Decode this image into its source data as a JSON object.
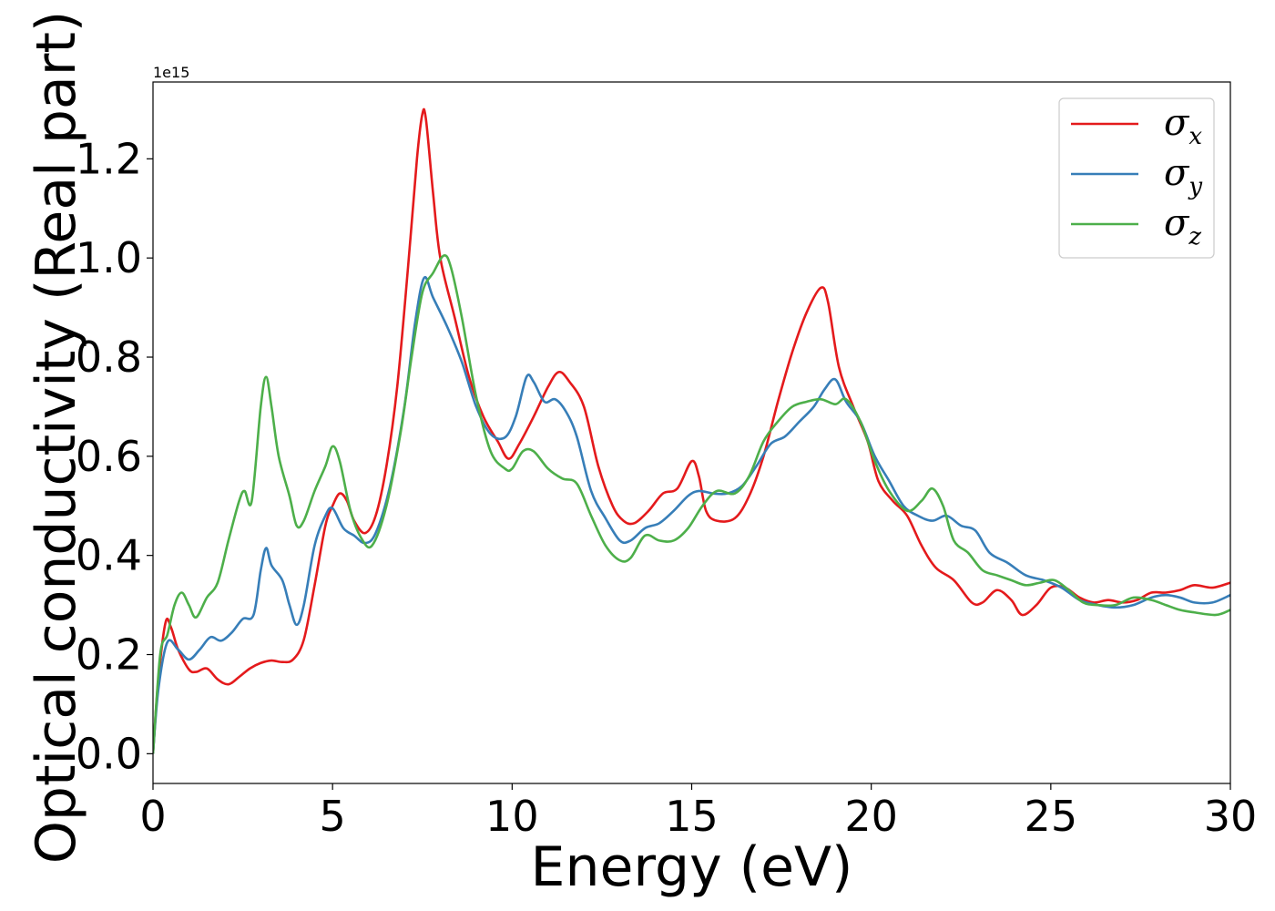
{
  "chart_data": {
    "type": "line",
    "xlabel": "Energy (eV)",
    "ylabel": "Optical conductivity (Real part)",
    "y_offset_label": "1e15",
    "xlim": [
      0,
      30
    ],
    "ylim": [
      -0.06,
      1.355
    ],
    "x_ticks": [
      0,
      5,
      10,
      15,
      20,
      25,
      30
    ],
    "x_tick_labels": [
      "0",
      "5",
      "10",
      "15",
      "20",
      "25",
      "30"
    ],
    "y_ticks": [
      0.0,
      0.2,
      0.4,
      0.6,
      0.8,
      1.0,
      1.2
    ],
    "y_tick_labels": [
      "0.0",
      "0.2",
      "0.4",
      "0.6",
      "0.8",
      "1.0",
      "1.2"
    ],
    "grid": false,
    "legend_position": "upper right",
    "series": [
      {
        "name": "σx",
        "symbol": "σ",
        "subscript": "x",
        "color": "#e41a1c",
        "points": [
          [
            0,
            0
          ],
          [
            0.15,
            0.15
          ],
          [
            0.35,
            0.265
          ],
          [
            0.5,
            0.255
          ],
          [
            0.7,
            0.21
          ],
          [
            1.0,
            0.17
          ],
          [
            1.2,
            0.165
          ],
          [
            1.5,
            0.172
          ],
          [
            1.8,
            0.15
          ],
          [
            2.1,
            0.14
          ],
          [
            2.4,
            0.155
          ],
          [
            2.7,
            0.172
          ],
          [
            3.0,
            0.183
          ],
          [
            3.3,
            0.188
          ],
          [
            3.6,
            0.185
          ],
          [
            3.9,
            0.19
          ],
          [
            4.2,
            0.23
          ],
          [
            4.5,
            0.34
          ],
          [
            4.8,
            0.46
          ],
          [
            5.0,
            0.5
          ],
          [
            5.2,
            0.525
          ],
          [
            5.4,
            0.51
          ],
          [
            5.6,
            0.47
          ],
          [
            5.9,
            0.445
          ],
          [
            6.2,
            0.48
          ],
          [
            6.5,
            0.58
          ],
          [
            6.8,
            0.74
          ],
          [
            7.1,
            0.98
          ],
          [
            7.35,
            1.2
          ],
          [
            7.5,
            1.29
          ],
          [
            7.6,
            1.28
          ],
          [
            7.8,
            1.13
          ],
          [
            8.0,
            1.0
          ],
          [
            8.4,
            0.88
          ],
          [
            8.8,
            0.76
          ],
          [
            9.2,
            0.68
          ],
          [
            9.6,
            0.63
          ],
          [
            9.9,
            0.595
          ],
          [
            10.2,
            0.625
          ],
          [
            10.6,
            0.68
          ],
          [
            11.0,
            0.74
          ],
          [
            11.3,
            0.77
          ],
          [
            11.6,
            0.75
          ],
          [
            12.0,
            0.7
          ],
          [
            12.4,
            0.58
          ],
          [
            12.8,
            0.5
          ],
          [
            13.1,
            0.47
          ],
          [
            13.4,
            0.465
          ],
          [
            13.8,
            0.49
          ],
          [
            14.2,
            0.525
          ],
          [
            14.6,
            0.535
          ],
          [
            15.0,
            0.59
          ],
          [
            15.2,
            0.56
          ],
          [
            15.4,
            0.49
          ],
          [
            15.7,
            0.47
          ],
          [
            16.2,
            0.475
          ],
          [
            16.6,
            0.52
          ],
          [
            17.0,
            0.6
          ],
          [
            17.4,
            0.71
          ],
          [
            17.8,
            0.81
          ],
          [
            18.2,
            0.89
          ],
          [
            18.6,
            0.94
          ],
          [
            18.8,
            0.91
          ],
          [
            19.1,
            0.78
          ],
          [
            19.5,
            0.7
          ],
          [
            19.9,
            0.63
          ],
          [
            20.2,
            0.55
          ],
          [
            20.6,
            0.51
          ],
          [
            21.0,
            0.48
          ],
          [
            21.4,
            0.42
          ],
          [
            21.8,
            0.375
          ],
          [
            22.3,
            0.35
          ],
          [
            22.8,
            0.305
          ],
          [
            23.1,
            0.305
          ],
          [
            23.5,
            0.33
          ],
          [
            23.9,
            0.31
          ],
          [
            24.2,
            0.28
          ],
          [
            24.6,
            0.3
          ],
          [
            25.0,
            0.335
          ],
          [
            25.4,
            0.335
          ],
          [
            25.8,
            0.315
          ],
          [
            26.2,
            0.305
          ],
          [
            26.6,
            0.31
          ],
          [
            27.0,
            0.305
          ],
          [
            27.4,
            0.31
          ],
          [
            27.8,
            0.325
          ],
          [
            28.2,
            0.325
          ],
          [
            28.6,
            0.33
          ],
          [
            29.0,
            0.34
          ],
          [
            29.5,
            0.335
          ],
          [
            30.0,
            0.345
          ]
        ]
      },
      {
        "name": "σy",
        "symbol": "σ",
        "subscript": "y",
        "color": "#377eb8",
        "points": [
          [
            0,
            0
          ],
          [
            0.15,
            0.13
          ],
          [
            0.4,
            0.225
          ],
          [
            0.7,
            0.21
          ],
          [
            1.0,
            0.19
          ],
          [
            1.3,
            0.21
          ],
          [
            1.6,
            0.235
          ],
          [
            1.9,
            0.228
          ],
          [
            2.2,
            0.245
          ],
          [
            2.5,
            0.272
          ],
          [
            2.8,
            0.28
          ],
          [
            3.0,
            0.37
          ],
          [
            3.15,
            0.415
          ],
          [
            3.3,
            0.38
          ],
          [
            3.6,
            0.35
          ],
          [
            3.8,
            0.3
          ],
          [
            4.0,
            0.26
          ],
          [
            4.2,
            0.3
          ],
          [
            4.5,
            0.42
          ],
          [
            4.8,
            0.48
          ],
          [
            5.0,
            0.495
          ],
          [
            5.3,
            0.455
          ],
          [
            5.6,
            0.44
          ],
          [
            5.9,
            0.425
          ],
          [
            6.2,
            0.445
          ],
          [
            6.6,
            0.54
          ],
          [
            7.0,
            0.7
          ],
          [
            7.3,
            0.87
          ],
          [
            7.55,
            0.96
          ],
          [
            7.8,
            0.92
          ],
          [
            8.2,
            0.86
          ],
          [
            8.6,
            0.79
          ],
          [
            9.0,
            0.7
          ],
          [
            9.4,
            0.645
          ],
          [
            9.8,
            0.638
          ],
          [
            10.1,
            0.68
          ],
          [
            10.4,
            0.76
          ],
          [
            10.6,
            0.75
          ],
          [
            10.9,
            0.71
          ],
          [
            11.2,
            0.715
          ],
          [
            11.5,
            0.69
          ],
          [
            11.8,
            0.64
          ],
          [
            12.2,
            0.53
          ],
          [
            12.6,
            0.475
          ],
          [
            13.0,
            0.43
          ],
          [
            13.3,
            0.43
          ],
          [
            13.7,
            0.455
          ],
          [
            14.1,
            0.465
          ],
          [
            14.5,
            0.49
          ],
          [
            14.9,
            0.52
          ],
          [
            15.2,
            0.53
          ],
          [
            15.6,
            0.525
          ],
          [
            16.0,
            0.525
          ],
          [
            16.4,
            0.54
          ],
          [
            16.8,
            0.58
          ],
          [
            17.2,
            0.625
          ],
          [
            17.6,
            0.64
          ],
          [
            18.0,
            0.67
          ],
          [
            18.4,
            0.7
          ],
          [
            18.7,
            0.735
          ],
          [
            19.0,
            0.755
          ],
          [
            19.3,
            0.71
          ],
          [
            19.7,
            0.67
          ],
          [
            20.1,
            0.6
          ],
          [
            20.5,
            0.55
          ],
          [
            20.9,
            0.5
          ],
          [
            21.3,
            0.48
          ],
          [
            21.7,
            0.47
          ],
          [
            22.1,
            0.48
          ],
          [
            22.5,
            0.46
          ],
          [
            22.9,
            0.45
          ],
          [
            23.3,
            0.405
          ],
          [
            23.8,
            0.385
          ],
          [
            24.3,
            0.36
          ],
          [
            24.8,
            0.35
          ],
          [
            25.3,
            0.335
          ],
          [
            25.8,
            0.31
          ],
          [
            26.3,
            0.3
          ],
          [
            26.8,
            0.295
          ],
          [
            27.3,
            0.3
          ],
          [
            27.8,
            0.315
          ],
          [
            28.2,
            0.32
          ],
          [
            28.6,
            0.315
          ],
          [
            29.0,
            0.305
          ],
          [
            29.5,
            0.305
          ],
          [
            30.0,
            0.32
          ]
        ]
      },
      {
        "name": "σz",
        "symbol": "σ",
        "subscript": "z",
        "color": "#4daf4a",
        "points": [
          [
            0,
            0
          ],
          [
            0.2,
            0.2
          ],
          [
            0.4,
            0.24
          ],
          [
            0.6,
            0.3
          ],
          [
            0.8,
            0.325
          ],
          [
            1.0,
            0.3
          ],
          [
            1.2,
            0.275
          ],
          [
            1.5,
            0.315
          ],
          [
            1.8,
            0.345
          ],
          [
            2.1,
            0.43
          ],
          [
            2.4,
            0.51
          ],
          [
            2.55,
            0.53
          ],
          [
            2.75,
            0.51
          ],
          [
            3.0,
            0.7
          ],
          [
            3.15,
            0.76
          ],
          [
            3.3,
            0.7
          ],
          [
            3.5,
            0.6
          ],
          [
            3.8,
            0.52
          ],
          [
            4.0,
            0.46
          ],
          [
            4.2,
            0.47
          ],
          [
            4.5,
            0.53
          ],
          [
            4.8,
            0.58
          ],
          [
            5.0,
            0.62
          ],
          [
            5.2,
            0.59
          ],
          [
            5.5,
            0.49
          ],
          [
            5.8,
            0.435
          ],
          [
            6.1,
            0.42
          ],
          [
            6.5,
            0.5
          ],
          [
            6.9,
            0.65
          ],
          [
            7.2,
            0.8
          ],
          [
            7.5,
            0.93
          ],
          [
            7.8,
            0.97
          ],
          [
            8.1,
            1.005
          ],
          [
            8.3,
            0.98
          ],
          [
            8.6,
            0.88
          ],
          [
            9.0,
            0.72
          ],
          [
            9.4,
            0.61
          ],
          [
            9.8,
            0.575
          ],
          [
            10.0,
            0.575
          ],
          [
            10.3,
            0.61
          ],
          [
            10.6,
            0.61
          ],
          [
            11.0,
            0.575
          ],
          [
            11.4,
            0.555
          ],
          [
            11.8,
            0.545
          ],
          [
            12.2,
            0.48
          ],
          [
            12.6,
            0.42
          ],
          [
            13.0,
            0.39
          ],
          [
            13.3,
            0.395
          ],
          [
            13.7,
            0.44
          ],
          [
            14.1,
            0.43
          ],
          [
            14.5,
            0.43
          ],
          [
            14.9,
            0.455
          ],
          [
            15.3,
            0.5
          ],
          [
            15.7,
            0.53
          ],
          [
            16.2,
            0.525
          ],
          [
            16.6,
            0.56
          ],
          [
            17.0,
            0.63
          ],
          [
            17.4,
            0.67
          ],
          [
            17.8,
            0.7
          ],
          [
            18.2,
            0.71
          ],
          [
            18.6,
            0.715
          ],
          [
            19.0,
            0.705
          ],
          [
            19.3,
            0.715
          ],
          [
            19.7,
            0.67
          ],
          [
            20.1,
            0.59
          ],
          [
            20.5,
            0.53
          ],
          [
            21.0,
            0.49
          ],
          [
            21.4,
            0.51
          ],
          [
            21.7,
            0.535
          ],
          [
            22.0,
            0.5
          ],
          [
            22.3,
            0.43
          ],
          [
            22.7,
            0.405
          ],
          [
            23.1,
            0.37
          ],
          [
            23.5,
            0.36
          ],
          [
            23.9,
            0.35
          ],
          [
            24.3,
            0.34
          ],
          [
            24.7,
            0.345
          ],
          [
            25.1,
            0.35
          ],
          [
            25.5,
            0.33
          ],
          [
            25.9,
            0.305
          ],
          [
            26.3,
            0.3
          ],
          [
            26.8,
            0.3
          ],
          [
            27.3,
            0.315
          ],
          [
            27.8,
            0.31
          ],
          [
            28.2,
            0.3
          ],
          [
            28.6,
            0.29
          ],
          [
            29.0,
            0.285
          ],
          [
            29.6,
            0.28
          ],
          [
            30.0,
            0.29
          ]
        ]
      }
    ]
  }
}
